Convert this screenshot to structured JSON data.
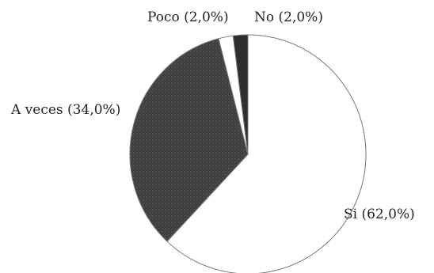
{
  "chart_data": {
    "type": "pie",
    "title": "",
    "slices": [
      {
        "label": "Si (62,0%)",
        "value": 62.0,
        "color": "#ffffff"
      },
      {
        "label": "A veces (34,0%)",
        "value": 34.0,
        "color": "#4a4a4a"
      },
      {
        "label": "Poco (2,0%)",
        "value": 2.0,
        "color": "#ffffff"
      },
      {
        "label": "No (2,0%)",
        "value": 2.0,
        "color": "#2e2e2e"
      }
    ],
    "start": "12 o'clock",
    "direction": "clockwise",
    "legend": "none"
  }
}
